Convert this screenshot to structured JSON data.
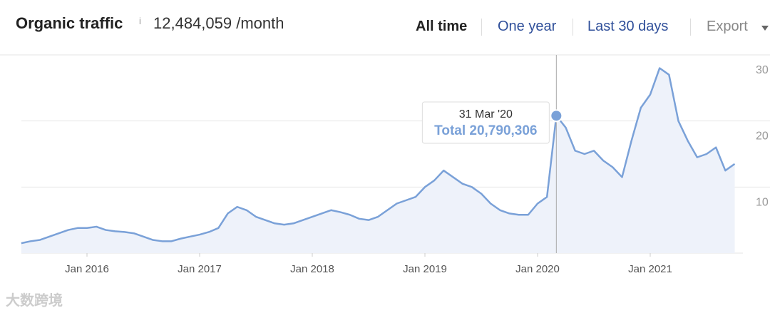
{
  "header": {
    "title": "Organic traffic",
    "info": "i",
    "total": "12,484,059 /month",
    "ranges": [
      "All time",
      "One year",
      "Last 30 days"
    ],
    "export": "Export"
  },
  "watermark": "大数跨境",
  "chart_data": {
    "type": "line",
    "x": [
      "2015-06",
      "2015-07",
      "2015-08",
      "2015-09",
      "2015-10",
      "2015-11",
      "2015-12",
      "2016-01",
      "2016-02",
      "2016-03",
      "2016-04",
      "2016-05",
      "2016-06",
      "2016-07",
      "2016-08",
      "2016-09",
      "2016-10",
      "2016-11",
      "2016-12",
      "2017-01",
      "2017-02",
      "2017-03",
      "2017-04",
      "2017-05",
      "2017-06",
      "2017-07",
      "2017-08",
      "2017-09",
      "2017-10",
      "2017-11",
      "2017-12",
      "2018-01",
      "2018-02",
      "2018-03",
      "2018-04",
      "2018-05",
      "2018-06",
      "2018-07",
      "2018-08",
      "2018-09",
      "2018-10",
      "2018-11",
      "2018-12",
      "2019-01",
      "2019-02",
      "2019-03",
      "2019-04",
      "2019-05",
      "2019-06",
      "2019-07",
      "2019-08",
      "2019-09",
      "2019-10",
      "2019-11",
      "2019-12",
      "2020-01",
      "2020-02",
      "2020-03",
      "2020-04",
      "2020-05",
      "2020-06",
      "2020-07",
      "2020-08",
      "2020-09",
      "2020-10",
      "2020-11",
      "2020-12",
      "2021-01",
      "2021-02",
      "2021-03",
      "2021-04",
      "2021-05",
      "2021-06",
      "2021-07",
      "2021-08",
      "2021-09",
      "2021-10"
    ],
    "series": [
      {
        "name": "Total",
        "color": "#7aa1d8",
        "values": [
          1.5,
          1.8,
          2,
          2.5,
          3,
          3.5,
          3.8,
          3.8,
          4,
          3.5,
          3.3,
          3.2,
          3,
          2.5,
          2,
          1.8,
          1.8,
          2.2,
          2.5,
          2.8,
          3.2,
          3.8,
          6,
          7,
          6.5,
          5.5,
          5,
          4.5,
          4.3,
          4.5,
          5,
          5.5,
          6,
          6.5,
          6.2,
          5.8,
          5.2,
          5,
          5.5,
          6.5,
          7.5,
          8,
          8.5,
          10,
          11,
          12.5,
          11.5,
          10.5,
          10,
          9,
          7.5,
          6.5,
          6,
          5.8,
          5.8,
          7.5,
          8.5,
          20.790306,
          19,
          15.5,
          15,
          15.5,
          14,
          13,
          11.5,
          17,
          22,
          24,
          28,
          27,
          20,
          17,
          14.5,
          15,
          16,
          12.5,
          13.5
        ]
      }
    ],
    "tooltip": {
      "date": "31 Mar '20",
      "text": "Total 20,790,306",
      "index": 57
    },
    "xticks": [
      {
        "value": "2016-01",
        "label": "Jan 2016"
      },
      {
        "value": "2017-01",
        "label": "Jan 2017"
      },
      {
        "value": "2018-01",
        "label": "Jan 2018"
      },
      {
        "value": "2019-01",
        "label": "Jan 2019"
      },
      {
        "value": "2020-01",
        "label": "Jan 2020"
      },
      {
        "value": "2021-01",
        "label": "Jan 2021"
      }
    ],
    "ylim": [
      0,
      30
    ],
    "yticks": [
      10,
      20,
      30
    ],
    "grid": true
  }
}
